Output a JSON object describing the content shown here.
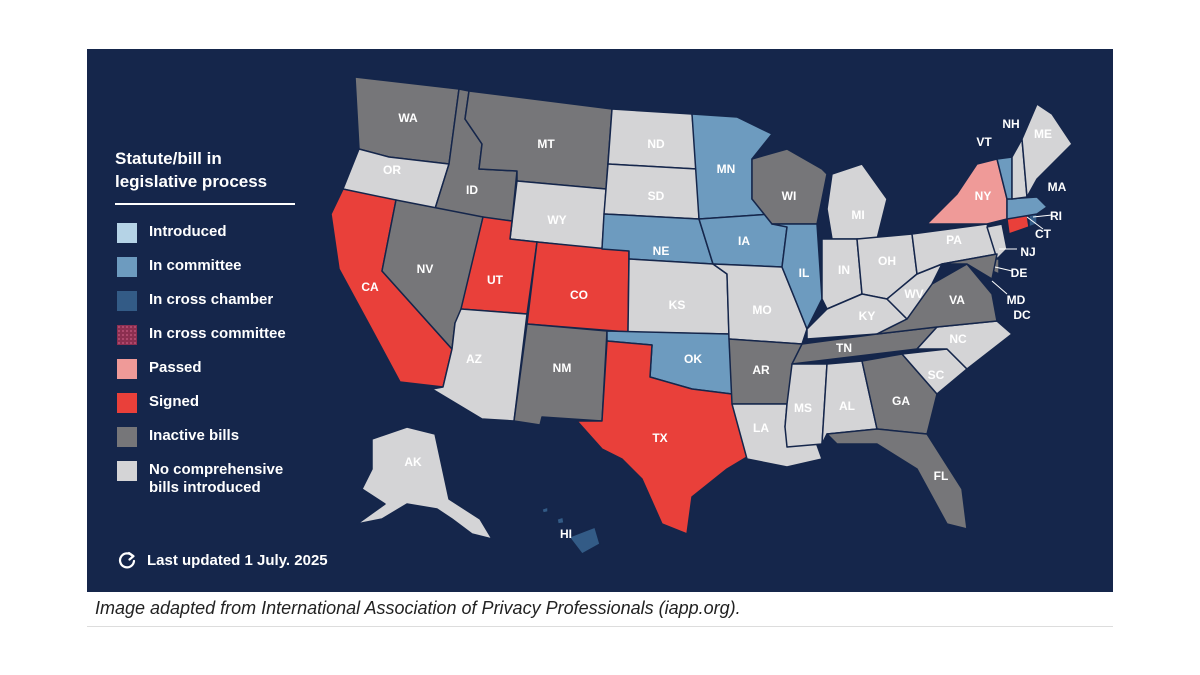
{
  "legend": {
    "title": "Statute/bill in legislative process",
    "items": [
      {
        "key": "introduced",
        "label": "Introduced",
        "color": "#b5d3e6"
      },
      {
        "key": "committee",
        "label": "In committee",
        "color": "#6d9bbf"
      },
      {
        "key": "cross_chamber",
        "label": "In cross chamber",
        "color": "#335b86"
      },
      {
        "key": "cross_committee",
        "label": "In cross committee",
        "color": "#8c2f50"
      },
      {
        "key": "passed",
        "label": "Passed",
        "color": "#ef9a98"
      },
      {
        "key": "signed",
        "label": "Signed",
        "color": "#e9403a"
      },
      {
        "key": "inactive",
        "label": "Inactive bills",
        "color": "#767679"
      },
      {
        "key": "none",
        "label": "No comprehensive bills introduced",
        "color": "#d4d4d6"
      }
    ]
  },
  "last_updated": "Last updated 1 July. 2025",
  "caption": "Image adapted from International Association of Privacy Professionals (iapp.org).",
  "states": [
    {
      "abbr": "WA",
      "status": "inactive"
    },
    {
      "abbr": "OR",
      "status": "none"
    },
    {
      "abbr": "CA",
      "status": "signed"
    },
    {
      "abbr": "ID",
      "status": "inactive"
    },
    {
      "abbr": "NV",
      "status": "inactive"
    },
    {
      "abbr": "MT",
      "status": "inactive"
    },
    {
      "abbr": "WY",
      "status": "none"
    },
    {
      "abbr": "UT",
      "status": "signed"
    },
    {
      "abbr": "CO",
      "status": "signed"
    },
    {
      "abbr": "AZ",
      "status": "none"
    },
    {
      "abbr": "NM",
      "status": "inactive"
    },
    {
      "abbr": "ND",
      "status": "none"
    },
    {
      "abbr": "SD",
      "status": "none"
    },
    {
      "abbr": "NE",
      "status": "committee"
    },
    {
      "abbr": "KS",
      "status": "none"
    },
    {
      "abbr": "OK",
      "status": "committee"
    },
    {
      "abbr": "TX",
      "status": "signed"
    },
    {
      "abbr": "MN",
      "status": "committee"
    },
    {
      "abbr": "IA",
      "status": "committee"
    },
    {
      "abbr": "MO",
      "status": "none"
    },
    {
      "abbr": "AR",
      "status": "inactive"
    },
    {
      "abbr": "LA",
      "status": "none"
    },
    {
      "abbr": "WI",
      "status": "inactive"
    },
    {
      "abbr": "IL",
      "status": "committee"
    },
    {
      "abbr": "MI",
      "status": "none"
    },
    {
      "abbr": "IN",
      "status": "none"
    },
    {
      "abbr": "OH",
      "status": "none"
    },
    {
      "abbr": "KY",
      "status": "none"
    },
    {
      "abbr": "TN",
      "status": "inactive"
    },
    {
      "abbr": "MS",
      "status": "none"
    },
    {
      "abbr": "AL",
      "status": "none"
    },
    {
      "abbr": "GA",
      "status": "inactive"
    },
    {
      "abbr": "FL",
      "status": "inactive"
    },
    {
      "abbr": "SC",
      "status": "none"
    },
    {
      "abbr": "NC",
      "status": "none"
    },
    {
      "abbr": "VA",
      "status": "inactive"
    },
    {
      "abbr": "WV",
      "status": "none"
    },
    {
      "abbr": "PA",
      "status": "none"
    },
    {
      "abbr": "NY",
      "status": "passed"
    },
    {
      "abbr": "NJ",
      "status": "none"
    },
    {
      "abbr": "DE",
      "status": "inactive"
    },
    {
      "abbr": "MD",
      "status": "inactive"
    },
    {
      "abbr": "DC",
      "status": "inactive"
    },
    {
      "abbr": "CT",
      "status": "signed"
    },
    {
      "abbr": "RI",
      "status": "cross_chamber"
    },
    {
      "abbr": "MA",
      "status": "committee"
    },
    {
      "abbr": "VT",
      "status": "committee"
    },
    {
      "abbr": "NH",
      "status": "none"
    },
    {
      "abbr": "ME",
      "status": "none"
    },
    {
      "abbr": "AK",
      "status": "none"
    },
    {
      "abbr": "HI",
      "status": "cross_chamber"
    }
  ]
}
